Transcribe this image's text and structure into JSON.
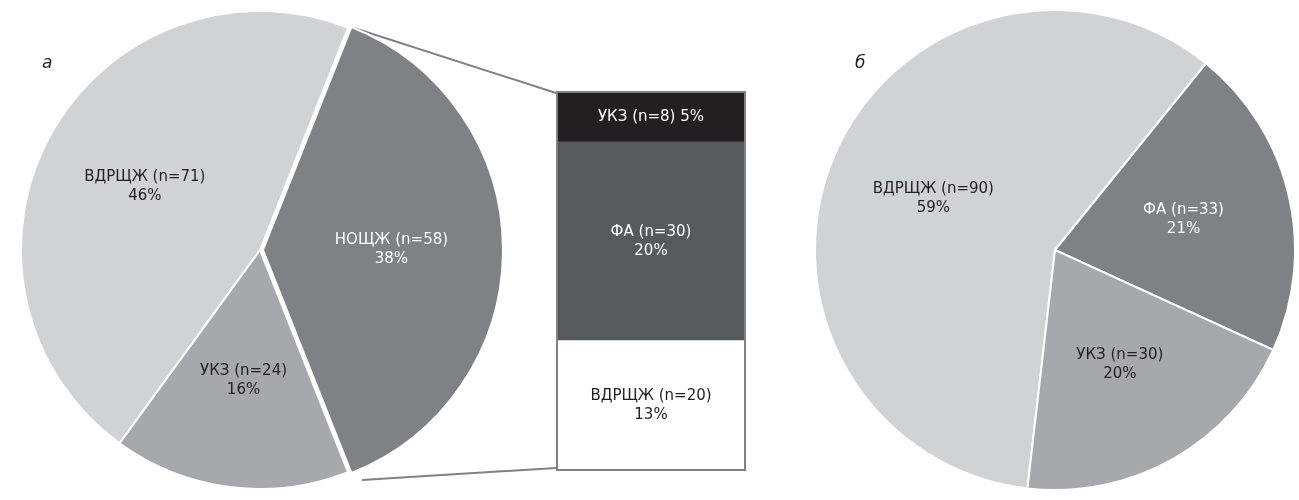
{
  "chart_data": [
    {
      "type": "pie",
      "title": "а",
      "categories": [
        "ВДРЩЖ (n=71)",
        "НОЩЖ (n=58)",
        "УКЗ (n=24)"
      ],
      "values": [
        46,
        38,
        16
      ],
      "colors": [
        "#d1d2d4",
        "#808184",
        "#a7a8ab"
      ],
      "value_labels": [
        "46%",
        "38%",
        "16%"
      ]
    },
    {
      "type": "bar",
      "stacked": true,
      "categories": [
        null
      ],
      "ylim": [
        0,
        38
      ],
      "series": [
        {
          "name": "ВДРЩЖ (n=20)",
          "color": "#ffffff",
          "values": [
            13
          ],
          "value_labels": [
            "13%"
          ]
        },
        {
          "name": "ФА (n=30)",
          "color": "#58595b",
          "values": [
            20
          ],
          "value_labels": [
            "20%"
          ]
        },
        {
          "name": "УКЗ (n=8)",
          "color": "#231f20",
          "values": [
            5
          ],
          "value_labels": [
            "5%"
          ]
        }
      ]
    },
    {
      "type": "pie",
      "title": "б",
      "categories": [
        "ВДРЩЖ (n=90)",
        "ФА (n=33)",
        "УКЗ (n=30)"
      ],
      "values": [
        59,
        21,
        20
      ],
      "colors": [
        "#d1d2d4",
        "#808184",
        "#a7a8ab"
      ],
      "value_labels": [
        "59%",
        "21%",
        "20%"
      ]
    }
  ]
}
